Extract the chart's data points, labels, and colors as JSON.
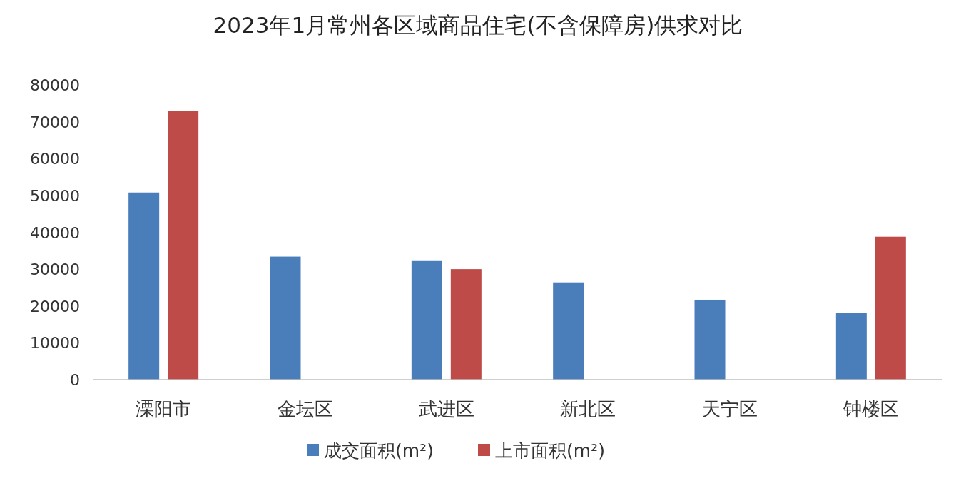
{
  "chart_data": {
    "type": "bar",
    "title": "2023年1月常州各区域商品住宅(不含保障房)供求对比",
    "categories": [
      "溧阳市",
      "金坛区",
      "武进区",
      "新北区",
      "天宁区",
      "钟楼区"
    ],
    "series": [
      {
        "name": "成交面积(m²)",
        "color": "#4a7ebb",
        "values": [
          50800,
          33400,
          32200,
          26400,
          21700,
          18200
        ]
      },
      {
        "name": "上市面积(m²)",
        "color": "#be4b48",
        "values": [
          72900,
          0,
          30000,
          0,
          0,
          38800
        ]
      }
    ],
    "ylim": [
      0,
      80000
    ],
    "yticks": [
      0,
      10000,
      20000,
      30000,
      40000,
      50000,
      60000,
      70000,
      80000
    ],
    "legend": "bottom"
  }
}
